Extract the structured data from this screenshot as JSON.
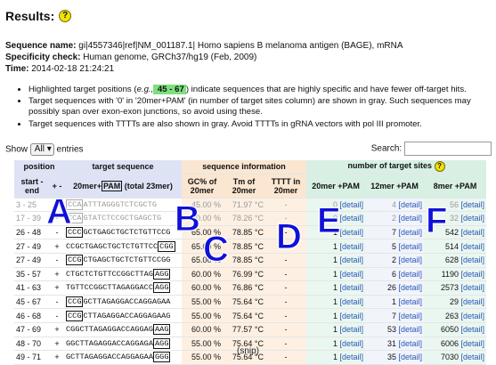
{
  "results": {
    "title": "Results:",
    "help_icon": "help-icon",
    "help_glyph": "?"
  },
  "meta": {
    "seq_label": "Sequence name:",
    "seq_value": " gi|4557346|ref|NM_001187.1| Homo sapiens B melanoma antigen (BAGE), mRNA",
    "spec_label": "Specificity check:",
    "spec_value": " Human genome, GRCh37/hg19 (Feb, 2009)",
    "time_label": "Time:",
    "time_value": " 2014-02-18 21:24:21"
  },
  "notes": {
    "n1_a": "Highlighted target positions (",
    "n1_eg": "e.g.,",
    "n1_hl": " 45 - 67",
    "n1_b": ") indicate sequences that are highly specific and have fewer off-target hits.",
    "n2": "Target sequences with '0' in '20mer+PAM' (in number of target sites column) are shown in gray. Such sequences may possibly span over exon-exon junctions, so avoid using these.",
    "n3": "Target sequences with TTTTs are also shown in gray. Avoid TTTTs in gRNA vectors with pol III promoter."
  },
  "controls": {
    "show": "Show",
    "select_value": "All",
    "entries": "entries",
    "search": "Search:"
  },
  "table": {
    "groups": {
      "position": "position",
      "target": "target sequence",
      "info": "sequence information",
      "sites": "number of target sites"
    },
    "cols": {
      "start_end": "start - end",
      "strand": "+ -",
      "seq_prefix": "20mer+",
      "seq_pam": "PAM",
      "seq_suffix": " (total 23mer)",
      "gc": "GC% of 20mer",
      "tm": "Tm of 20mer",
      "tttt": "TTTT in 20mer",
      "s1": "20mer +PAM",
      "s2": "12mer +PAM",
      "s3": "8mer +PAM"
    },
    "rows": [
      {
        "pos": "3 - 25",
        "strand": "-",
        "pre": "",
        "mid": "CCA",
        "seq": "ATTTAGGGTCTCGCTG",
        "post": "",
        "gc": "45.00 %",
        "tm": "71.97 °C",
        "tttt": "-",
        "n1": "0",
        "n2": "4",
        "n3": "56",
        "gray": true
      },
      {
        "pos": "17 - 39",
        "strand": "-",
        "pre": "",
        "mid": "CCA",
        "seq": "GTATCTCCGCTGAGCTG",
        "post": "",
        "gc": "60.00 %",
        "tm": "78.26 °C",
        "tttt": "-",
        "n1": "0",
        "n2": "2",
        "n3": "32",
        "gray": true
      },
      {
        "pos": "26 - 48",
        "strand": "-",
        "pre": "",
        "mid": "CCC",
        "seq": "GCTGAGCTGCTCTGTTCCG",
        "post": "",
        "gc": "65.00 %",
        "tm": "78.85 °C",
        "tttt": "-",
        "n1": "1",
        "n2": "7",
        "n3": "542"
      },
      {
        "pos": "27 - 49",
        "strand": "+",
        "pre": "",
        "mid": "",
        "seq": "CCGCTGAGCTGCTCTGTTCC",
        "post": "CGG",
        "gc": "65.00 %",
        "tm": "78.85 °C",
        "tttt": "-",
        "n1": "1",
        "n2": "5",
        "n3": "514"
      },
      {
        "pos": "27 - 49",
        "strand": "-",
        "pre": "",
        "mid": "CCG",
        "seq": "CTGAGCTGCTCTGTTCCGG",
        "post": "",
        "gc": "65.00 %",
        "tm": "78.85 °C",
        "tttt": "-",
        "n1": "1",
        "n2": "2",
        "n3": "628"
      },
      {
        "pos": "35 - 57",
        "strand": "+",
        "pre": "",
        "mid": "",
        "seq": "CTGCTCTGTTCCGGCTTAG",
        "post": "AGG",
        "gc": "60.00 %",
        "tm": "76.99 °C",
        "tttt": "-",
        "n1": "1",
        "n2": "6",
        "n3": "1190"
      },
      {
        "pos": "41 - 63",
        "strand": "+",
        "pre": "",
        "mid": "",
        "seq": "TGTTCCGGCTTAGAGGACC",
        "post": "AGG",
        "gc": "60.00 %",
        "tm": "76.86 °C",
        "tttt": "-",
        "n1": "1",
        "n2": "26",
        "n3": "2573"
      },
      {
        "pos": "45 - 67",
        "strand": "-",
        "pre": "",
        "mid": "CCG",
        "seq": "GCTTAGAGGACCAGGAGAA",
        "post": "",
        "gc": "55.00 %",
        "tm": "75.64 °C",
        "tttt": "-",
        "n1": "1",
        "n2": "1",
        "n3": "29"
      },
      {
        "pos": "46 - 68",
        "strand": "-",
        "pre": "",
        "mid": "CCG",
        "seq": "CTTAGAGGACCAGGAGAAG",
        "post": "",
        "gc": "55.00 %",
        "tm": "75.64 °C",
        "tttt": "-",
        "n1": "1",
        "n2": "7",
        "n3": "263"
      },
      {
        "pos": "47 - 69",
        "strand": "+",
        "pre": "",
        "mid": "",
        "seq": "CGGCTTAGAGGACCAGGAG",
        "post": "AAG",
        "gc": "60.00 %",
        "tm": "77.57 °C",
        "tttt": "-",
        "n1": "1",
        "n2": "53",
        "n3": "6050"
      },
      {
        "pos": "48 - 70",
        "strand": "+",
        "pre": "",
        "mid": "",
        "seq": "GGCTTAGAGGACCAGGAGA",
        "post": "AGG",
        "gc": "55.00 %",
        "tm": "75.64 °C",
        "tttt": "-",
        "n1": "1",
        "n2": "31",
        "n3": "6006"
      },
      {
        "pos": "49 - 71",
        "strand": "+",
        "pre": "",
        "mid": "",
        "seq": "GCTTAGAGGACCAGGAGAA",
        "post": "GGG",
        "gc": "55.00 %",
        "tm": "75.64 °C",
        "tttt": "-",
        "n1": "1",
        "n2": "35",
        "n3": "7030"
      }
    ],
    "detail": "[detail]"
  },
  "overlay_letters": [
    "A",
    "B",
    "C",
    "D",
    "E",
    "F"
  ],
  "snip": "(snip)"
}
